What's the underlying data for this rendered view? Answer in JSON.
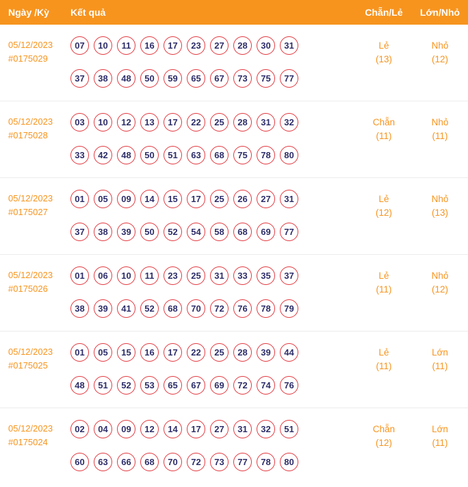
{
  "header": {
    "date_period": "Ngày /Kỳ",
    "result": "Kết quả",
    "even_odd": "Chẵn/Lẻ",
    "big_small": "Lớn/Nhỏ"
  },
  "colors": {
    "header_bg": "#f7941e",
    "accent_text": "#f7941e",
    "ball_border": "#e2383f",
    "ball_text": "#2e2e6a",
    "row_divider": "#ececec"
  },
  "rows": [
    {
      "date": "05/12/2023",
      "period": "#0175029",
      "line1": [
        "07",
        "10",
        "11",
        "16",
        "17",
        "23",
        "27",
        "28",
        "30",
        "31"
      ],
      "line2": [
        "37",
        "38",
        "48",
        "50",
        "59",
        "65",
        "67",
        "73",
        "75",
        "77"
      ],
      "even_odd": {
        "label": "Lẻ",
        "count": "(13)"
      },
      "big_small": {
        "label": "Nhỏ",
        "count": "(12)"
      }
    },
    {
      "date": "05/12/2023",
      "period": "#0175028",
      "line1": [
        "03",
        "10",
        "12",
        "13",
        "17",
        "22",
        "25",
        "28",
        "31",
        "32"
      ],
      "line2": [
        "33",
        "42",
        "48",
        "50",
        "51",
        "63",
        "68",
        "75",
        "78",
        "80"
      ],
      "even_odd": {
        "label": "Chẵn",
        "count": "(11)"
      },
      "big_small": {
        "label": "Nhỏ",
        "count": "(11)"
      }
    },
    {
      "date": "05/12/2023",
      "period": "#0175027",
      "line1": [
        "01",
        "05",
        "09",
        "14",
        "15",
        "17",
        "25",
        "26",
        "27",
        "31"
      ],
      "line2": [
        "37",
        "38",
        "39",
        "50",
        "52",
        "54",
        "58",
        "68",
        "69",
        "77"
      ],
      "even_odd": {
        "label": "Lẻ",
        "count": "(12)"
      },
      "big_small": {
        "label": "Nhỏ",
        "count": "(13)"
      }
    },
    {
      "date": "05/12/2023",
      "period": "#0175026",
      "line1": [
        "01",
        "06",
        "10",
        "11",
        "23",
        "25",
        "31",
        "33",
        "35",
        "37"
      ],
      "line2": [
        "38",
        "39",
        "41",
        "52",
        "68",
        "70",
        "72",
        "76",
        "78",
        "79"
      ],
      "even_odd": {
        "label": "Lẻ",
        "count": "(11)"
      },
      "big_small": {
        "label": "Nhỏ",
        "count": "(12)"
      }
    },
    {
      "date": "05/12/2023",
      "period": "#0175025",
      "line1": [
        "01",
        "05",
        "15",
        "16",
        "17",
        "22",
        "25",
        "28",
        "39",
        "44"
      ],
      "line2": [
        "48",
        "51",
        "52",
        "53",
        "65",
        "67",
        "69",
        "72",
        "74",
        "76"
      ],
      "even_odd": {
        "label": "Lẻ",
        "count": "(11)"
      },
      "big_small": {
        "label": "Lớn",
        "count": "(11)"
      }
    },
    {
      "date": "05/12/2023",
      "period": "#0175024",
      "line1": [
        "02",
        "04",
        "09",
        "12",
        "14",
        "17",
        "27",
        "31",
        "32",
        "51"
      ],
      "line2": [
        "60",
        "63",
        "66",
        "68",
        "70",
        "72",
        "73",
        "77",
        "78",
        "80"
      ],
      "even_odd": {
        "label": "Chẵn",
        "count": "(12)"
      },
      "big_small": {
        "label": "Lớn",
        "count": "(11)"
      }
    }
  ]
}
